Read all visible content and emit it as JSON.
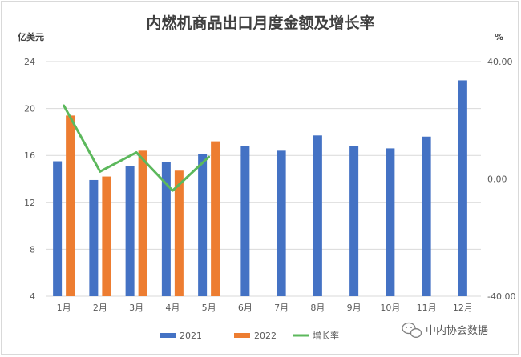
{
  "chart_data": {
    "type": "bar",
    "title": "内燃机商品出口月度金额及增长率",
    "left_unit": "亿美元",
    "right_unit": "%",
    "categories": [
      "1月",
      "2月",
      "3月",
      "4月",
      "5月",
      "6月",
      "7月",
      "8月",
      "9月",
      "10月",
      "11月",
      "12月"
    ],
    "series": [
      {
        "name": "2021",
        "type": "bar",
        "axis": "left",
        "color": "#4472c4",
        "values": [
          15.5,
          13.9,
          15.1,
          15.4,
          16.1,
          16.8,
          16.4,
          17.7,
          16.8,
          16.6,
          17.6,
          22.4
        ]
      },
      {
        "name": "2022",
        "type": "bar",
        "axis": "left",
        "color": "#ed7d31",
        "values": [
          19.4,
          14.2,
          16.4,
          14.7,
          17.2,
          null,
          null,
          null,
          null,
          null,
          null,
          null
        ]
      },
      {
        "name": "增长率",
        "type": "line",
        "axis": "right",
        "color": "#5cb85c",
        "values": [
          25.0,
          2.5,
          9.0,
          -4.0,
          7.5,
          null,
          null,
          null,
          null,
          null,
          null,
          null
        ]
      }
    ],
    "ylim": [
      4,
      24
    ],
    "yticks": [
      "4",
      "8",
      "12",
      "16",
      "20",
      "24"
    ],
    "y2lim": [
      -40,
      40
    ],
    "y2ticks": [
      "-40.00",
      "0.00",
      "40.00"
    ],
    "legend_position": "bottom"
  },
  "watermark": {
    "icon": "wechat-icon",
    "text": "中内协会数据"
  }
}
